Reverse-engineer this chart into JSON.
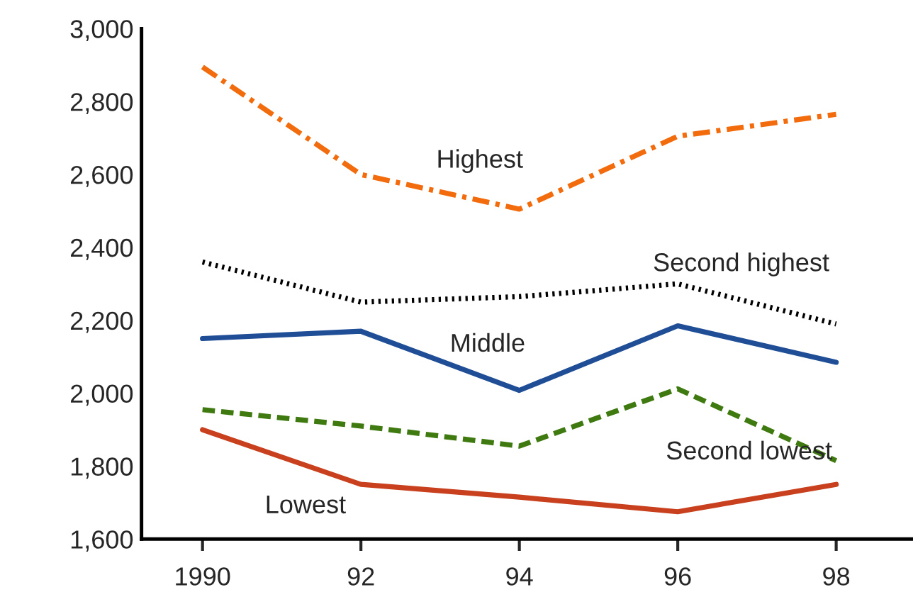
{
  "chart_data": {
    "type": "line",
    "x": [
      1990,
      1992,
      1994,
      1996,
      1998
    ],
    "series": [
      {
        "name": "Highest",
        "color": "#f26c0d",
        "line_style": "dashdot",
        "values": [
          2895,
          2600,
          2505,
          2705,
          2765
        ]
      },
      {
        "name": "Second highest",
        "color": "#000000",
        "line_style": "dotted",
        "values": [
          2360,
          2250,
          2265,
          2300,
          2190
        ]
      },
      {
        "name": "Middle",
        "color": "#1f4e96",
        "line_style": "solid",
        "values": [
          2150,
          2170,
          2008,
          2185,
          2085
        ]
      },
      {
        "name": "Second lowest",
        "color": "#3f7a10",
        "line_style": "dashed",
        "values": [
          1955,
          1910,
          1855,
          2012,
          1815
        ]
      },
      {
        "name": "Lowest",
        "color": "#c8401e",
        "line_style": "solid",
        "values": [
          1900,
          1750,
          1715,
          1675,
          1750
        ]
      }
    ],
    "xlim": [
      1989.23,
      1998.97
    ],
    "xticks": [
      {
        "value": 1990,
        "label": "1990"
      },
      {
        "value": 1992,
        "label": "92"
      },
      {
        "value": 1994,
        "label": "94"
      },
      {
        "value": 1996,
        "label": "96"
      },
      {
        "value": 1998,
        "label": "98"
      }
    ],
    "ylim": [
      1600,
      3000
    ],
    "yticks": [
      {
        "value": 1600,
        "label": "1,600"
      },
      {
        "value": 1800,
        "label": "1,800"
      },
      {
        "value": 2000,
        "label": "2,000"
      },
      {
        "value": 2200,
        "label": "2,200"
      },
      {
        "value": 2400,
        "label": "2,400"
      },
      {
        "value": 2600,
        "label": "2,600"
      },
      {
        "value": 2800,
        "label": "2,800"
      },
      {
        "value": 3000,
        "label": "3,000"
      }
    ],
    "grid": false,
    "legend": false,
    "marker": "none"
  }
}
